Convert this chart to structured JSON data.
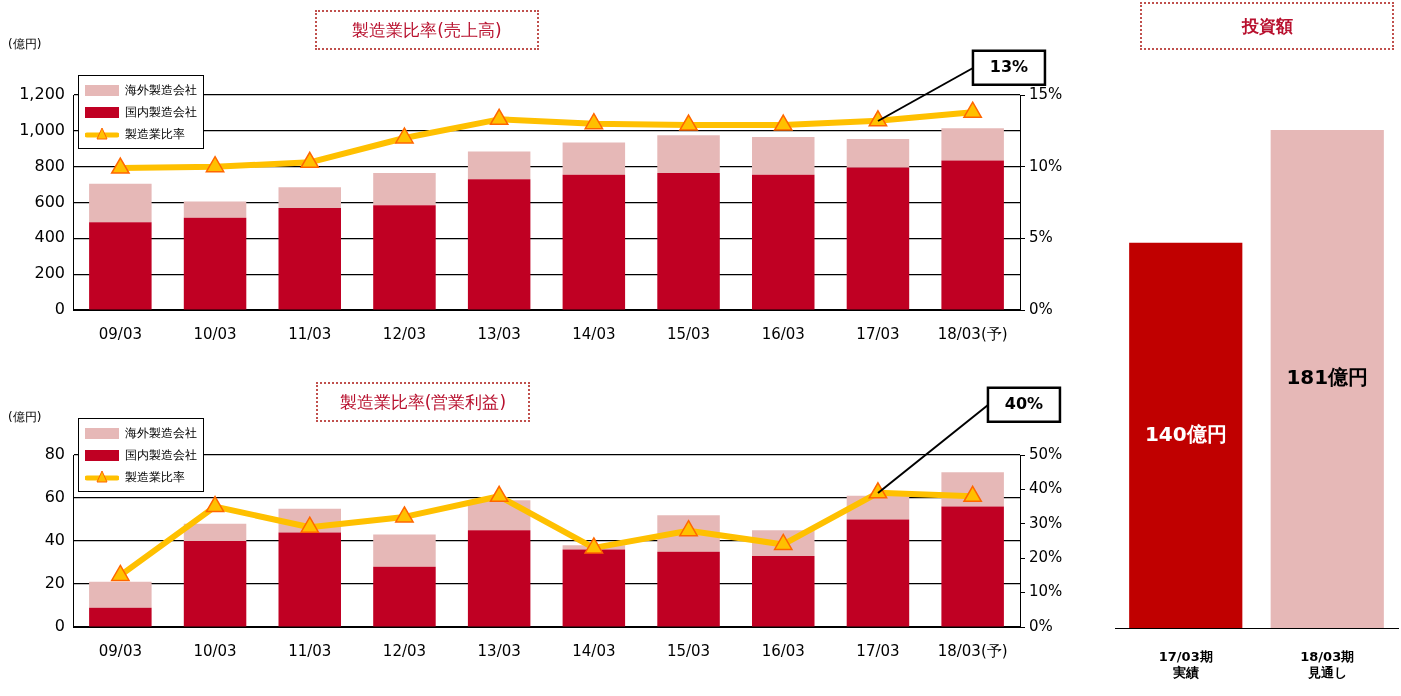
{
  "chart_data": [
    {
      "type": "bar",
      "title": "製造業比率(売上高)",
      "ylabel": "(億円)",
      "categories": [
        "09/03",
        "10/03",
        "11/03",
        "12/03",
        "13/03",
        "14/03",
        "15/03",
        "16/03",
        "17/03",
        "18/03(予)"
      ],
      "stacked": true,
      "series": [
        {
          "name": "国内製造会社",
          "color": "#c00023",
          "values": [
            490,
            515,
            570,
            585,
            730,
            755,
            765,
            755,
            795,
            835
          ]
        },
        {
          "name": "海外製造会社",
          "color": "#e6b8b7",
          "values": [
            215,
            90,
            115,
            180,
            155,
            180,
            210,
            210,
            160,
            180
          ]
        },
        {
          "name": "製造業比率",
          "type": "line",
          "axis": "y2",
          "color": "#ffc000",
          "values": [
            9.9,
            10.0,
            10.3,
            12.0,
            13.3,
            13.0,
            12.9,
            12.9,
            13.2,
            13.8
          ]
        }
      ],
      "ylim": [
        0,
        1200
      ],
      "yticks": [
        0,
        200,
        400,
        600,
        800,
        {
          "value": 1000,
          "label": "1,000"
        },
        {
          "value": 1200,
          "label": "1,200"
        }
      ],
      "y2lim": [
        0,
        15
      ],
      "y2ticks": [
        {
          "value": 0,
          "label": "0%"
        },
        {
          "value": 5,
          "label": "5%"
        },
        {
          "value": 10,
          "label": "10%"
        },
        {
          "value": 15,
          "label": "15%"
        }
      ],
      "grid": "y",
      "legend": "top left",
      "marker": "triangle",
      "annotations": [
        {
          "text": "13%",
          "x": "17/03",
          "y": 1056
        }
      ]
    },
    {
      "type": "bar",
      "title": "製造業比率(営業利益)",
      "ylabel": "(億円)",
      "categories": [
        "09/03",
        "10/03",
        "11/03",
        "12/03",
        "13/03",
        "14/03",
        "15/03",
        "16/03",
        "17/03",
        "18/03(予)"
      ],
      "stacked": true,
      "series": [
        {
          "name": "国内製造会社",
          "color": "#c00023",
          "values": [
            9,
            40,
            44,
            28,
            45,
            36,
            35,
            33,
            50,
            56
          ]
        },
        {
          "name": "海外製造会社",
          "color": "#e6b8b7",
          "values": [
            12,
            8,
            11,
            15,
            14,
            2,
            17,
            12,
            11,
            16
          ]
        },
        {
          "name": "製造業比率",
          "type": "line",
          "axis": "y2",
          "color": "#ffc000",
          "values": [
            15,
            35,
            29,
            32,
            38,
            23,
            28,
            24,
            39,
            38
          ]
        }
      ],
      "ylim": [
        0,
        80
      ],
      "yticks": [
        0,
        20,
        40,
        60,
        80
      ],
      "y2lim": [
        0,
        50
      ],
      "y2ticks": [
        {
          "value": 0,
          "label": "0%"
        },
        {
          "value": 10,
          "label": "10%"
        },
        {
          "value": 20,
          "label": "20%"
        },
        {
          "value": 30,
          "label": "30%"
        },
        {
          "value": 40,
          "label": "40%"
        },
        {
          "value": 50,
          "label": "50%"
        }
      ],
      "grid": "y",
      "legend": "top left",
      "marker": "triangle",
      "annotations": [
        {
          "text": "40%",
          "x": "17/03",
          "y": 62.4
        }
      ]
    },
    {
      "type": "bar",
      "title": "投資額",
      "categories": [
        "17/03期実績",
        "18/03期見通し"
      ],
      "values": [
        140,
        181
      ],
      "colors": [
        "#c00000",
        "#e6b8b7"
      ],
      "value_labels": [
        "140億円",
        "181億円"
      ]
    }
  ]
}
